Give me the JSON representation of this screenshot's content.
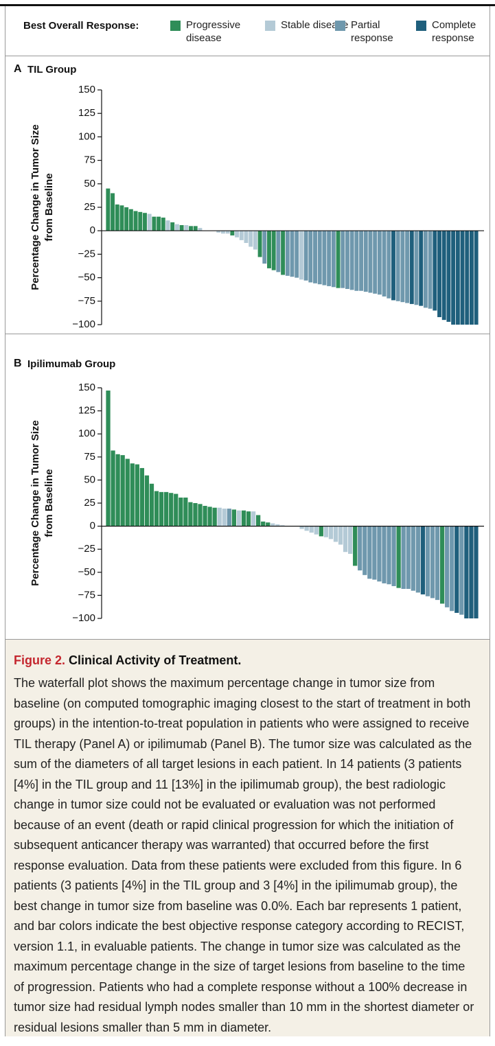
{
  "chart_data": [
    {
      "type": "bar",
      "panel": "A",
      "title": "TIL Group",
      "legend_title": "Best Overall Response:",
      "y_label": "Percentage Change in Tumor Size from Baseline",
      "ylim": [
        -100,
        150
      ],
      "yticks": [
        150,
        125,
        100,
        75,
        50,
        25,
        0,
        {
          "value": -25,
          "label": "−25"
        },
        {
          "value": -50,
          "label": "−50"
        },
        {
          "value": -75,
          "label": "−75"
        },
        {
          "value": -100,
          "label": "−100"
        }
      ],
      "series": [
        {
          "name": "Progressive disease",
          "color": "#2f8d58",
          "values": [
            45,
            40,
            28,
            27,
            25,
            23,
            21,
            20,
            19,
            null,
            15,
            15,
            14,
            null,
            9,
            null,
            6,
            null,
            5,
            5,
            null,
            null,
            null,
            null,
            null,
            null,
            null,
            -5,
            null,
            null,
            null,
            null,
            null,
            -28,
            null,
            -40,
            -42,
            null,
            -47,
            null,
            null,
            null,
            null,
            null,
            null,
            null,
            null,
            null,
            null,
            null,
            -61,
            null,
            null,
            null,
            null,
            null,
            null,
            null,
            null,
            null,
            null,
            null,
            null,
            null,
            null,
            null,
            null,
            null,
            null,
            null,
            null,
            null,
            null,
            null,
            null,
            null,
            null,
            null,
            null,
            null,
            null
          ]
        },
        {
          "name": "Stable disease",
          "color": "#b4cad6",
          "values": [
            null,
            null,
            null,
            null,
            null,
            null,
            null,
            null,
            null,
            18,
            null,
            null,
            null,
            11,
            null,
            7,
            null,
            6,
            null,
            null,
            3,
            0,
            0,
            0,
            -2,
            -3,
            -3,
            null,
            -7,
            -10,
            -13,
            -17,
            -20,
            null,
            null,
            null,
            null,
            null,
            null,
            null,
            null,
            null,
            -52,
            null,
            null,
            null,
            null,
            null,
            null,
            null,
            null,
            null,
            null,
            null,
            null,
            null,
            null,
            null,
            null,
            null,
            null,
            null,
            null,
            null,
            null,
            null,
            null,
            null,
            null,
            null,
            null,
            null,
            null,
            null,
            null,
            null,
            null,
            null,
            null,
            null,
            null
          ]
        },
        {
          "name": "Partial response",
          "color": "#6f98ad",
          "values": [
            null,
            null,
            null,
            null,
            null,
            null,
            null,
            null,
            null,
            null,
            null,
            null,
            null,
            null,
            null,
            null,
            null,
            null,
            null,
            null,
            null,
            null,
            null,
            null,
            null,
            null,
            null,
            null,
            null,
            null,
            null,
            null,
            null,
            null,
            -35,
            null,
            null,
            -44,
            null,
            -48,
            -49,
            -50,
            null,
            -53,
            -55,
            -56,
            -57,
            -58,
            -59,
            -60,
            null,
            -61,
            -62,
            -63,
            -64,
            -64,
            -65,
            -66,
            -67,
            -68,
            -70,
            -72,
            null,
            -75,
            -76,
            -77,
            null,
            -79,
            null,
            -82,
            -83,
            null,
            null,
            null,
            null,
            null,
            null,
            null,
            null,
            null,
            null
          ]
        },
        {
          "name": "Complete response",
          "color": "#1f5f7c",
          "values": [
            null,
            null,
            null,
            null,
            null,
            null,
            null,
            null,
            null,
            null,
            null,
            null,
            null,
            null,
            null,
            null,
            null,
            null,
            null,
            null,
            null,
            null,
            null,
            null,
            null,
            null,
            null,
            null,
            null,
            null,
            null,
            null,
            null,
            null,
            null,
            null,
            null,
            null,
            null,
            null,
            null,
            null,
            null,
            null,
            null,
            null,
            null,
            null,
            null,
            null,
            null,
            null,
            null,
            null,
            null,
            null,
            null,
            null,
            null,
            null,
            null,
            null,
            -74,
            null,
            null,
            null,
            -78,
            null,
            -80,
            null,
            null,
            -85,
            -92,
            -95,
            -97,
            -100,
            -100,
            -100,
            -100,
            -100,
            -100
          ]
        }
      ]
    },
    {
      "type": "bar",
      "panel": "B",
      "title": "Ipilimumab Group",
      "y_label": "Percentage Change in Tumor Size from Baseline",
      "ylim": [
        -100,
        150
      ],
      "yticks": [
        150,
        125,
        100,
        75,
        50,
        25,
        0,
        {
          "value": -25,
          "label": "−25"
        },
        {
          "value": -50,
          "label": "−50"
        },
        {
          "value": -75,
          "label": "−75"
        },
        {
          "value": -100,
          "label": "−100"
        }
      ],
      "series": [
        {
          "color": "#2f8d58",
          "values": [
            147,
            82,
            78,
            77,
            73,
            68,
            67,
            63,
            55,
            46,
            38,
            37,
            37,
            36,
            35,
            31,
            31,
            26,
            25,
            24,
            22,
            21,
            20,
            null,
            null,
            null,
            18,
            null,
            17,
            16,
            null,
            12,
            5,
            4,
            null,
            null,
            null,
            null,
            null,
            null,
            null,
            null,
            null,
            null,
            -11,
            null,
            null,
            null,
            null,
            null,
            null,
            -43,
            null,
            null,
            null,
            null,
            null,
            null,
            null,
            null,
            -67,
            null,
            null,
            null,
            null,
            null,
            null,
            null,
            null,
            -84,
            null,
            null,
            null,
            null,
            null,
            null,
            null
          ]
        },
        {
          "color": "#b4cad6",
          "values": [
            null,
            null,
            null,
            null,
            null,
            null,
            null,
            null,
            null,
            null,
            null,
            null,
            null,
            null,
            null,
            null,
            null,
            null,
            null,
            null,
            null,
            null,
            null,
            20,
            19,
            null,
            null,
            17,
            null,
            null,
            16,
            null,
            null,
            null,
            3,
            2,
            1,
            0,
            0,
            0,
            -3,
            -5,
            -7,
            -9,
            null,
            -12,
            -14,
            -17,
            -20,
            -28,
            -30,
            null,
            null,
            null,
            null,
            null,
            null,
            null,
            null,
            null,
            null,
            null,
            null,
            null,
            null,
            null,
            null,
            null,
            null,
            null,
            null,
            null,
            null,
            null,
            null,
            null,
            null
          ]
        },
        {
          "color": "#6f98ad",
          "values": [
            null,
            null,
            null,
            null,
            null,
            null,
            null,
            null,
            null,
            null,
            null,
            null,
            null,
            null,
            null,
            null,
            null,
            null,
            null,
            null,
            null,
            null,
            null,
            null,
            null,
            19,
            null,
            null,
            null,
            null,
            null,
            null,
            null,
            null,
            null,
            null,
            null,
            null,
            null,
            null,
            null,
            null,
            null,
            null,
            null,
            null,
            null,
            null,
            null,
            null,
            null,
            null,
            -48,
            -53,
            -57,
            -58,
            -60,
            -62,
            -63,
            -65,
            null,
            -68,
            -68,
            -70,
            -72,
            null,
            -76,
            -78,
            -80,
            null,
            -88,
            -92,
            null,
            -96,
            null,
            null,
            null
          ]
        },
        {
          "color": "#1f5f7c",
          "values": [
            null,
            null,
            null,
            null,
            null,
            null,
            null,
            null,
            null,
            null,
            null,
            null,
            null,
            null,
            null,
            null,
            null,
            null,
            null,
            null,
            null,
            null,
            null,
            null,
            null,
            null,
            null,
            null,
            null,
            null,
            null,
            null,
            null,
            null,
            null,
            null,
            null,
            null,
            null,
            null,
            null,
            null,
            null,
            null,
            null,
            null,
            null,
            null,
            null,
            null,
            null,
            null,
            null,
            null,
            null,
            null,
            null,
            null,
            null,
            null,
            null,
            null,
            null,
            null,
            null,
            -74,
            null,
            null,
            null,
            null,
            null,
            null,
            -94,
            null,
            -100,
            -100,
            -100
          ]
        }
      ]
    }
  ],
  "caption": {
    "label": "Figure 2.",
    "title": "Clinical Activity of Treatment.",
    "text": "The waterfall plot shows the maximum percentage change in tumor size from baseline (on computed tomographic imaging closest to the start of treatment in both groups) in the intention-to-treat population in patients who were assigned to receive TIL therapy (Panel A) or ipilimumab (Panel B). The tumor size was calculated as the sum of the diameters of all target lesions in each patient. In 14 patients (3 patients [4%] in the TIL group and 11 [13%] in the ipilimumab group), the best radiologic change in tumor size could not be evaluated or evaluation was not performed because of an event (death or rapid clinical progression for which the initiation of subsequent anticancer therapy was warranted) that occurred before the first response evaluation. Data from these patients were excluded from this figure. In 6 patients (3 patients [4%] in the TIL group and 3 [4%] in the ipilimumab group), the best change in tumor size from baseline was 0.0%. Each bar represents 1 patient, and bar colors indicate the best objective response category according to RECIST, version 1.1, in evaluable patients. The change in tumor size was calculated as the maximum percentage change in the size of target lesions from baseline to the time of progression. Patients who had a complete response without a 100% decrease in tumor size had residual lymph nodes smaller than 10 mm in the shortest diameter or residual lesions smaller than 5 mm in diameter."
  }
}
